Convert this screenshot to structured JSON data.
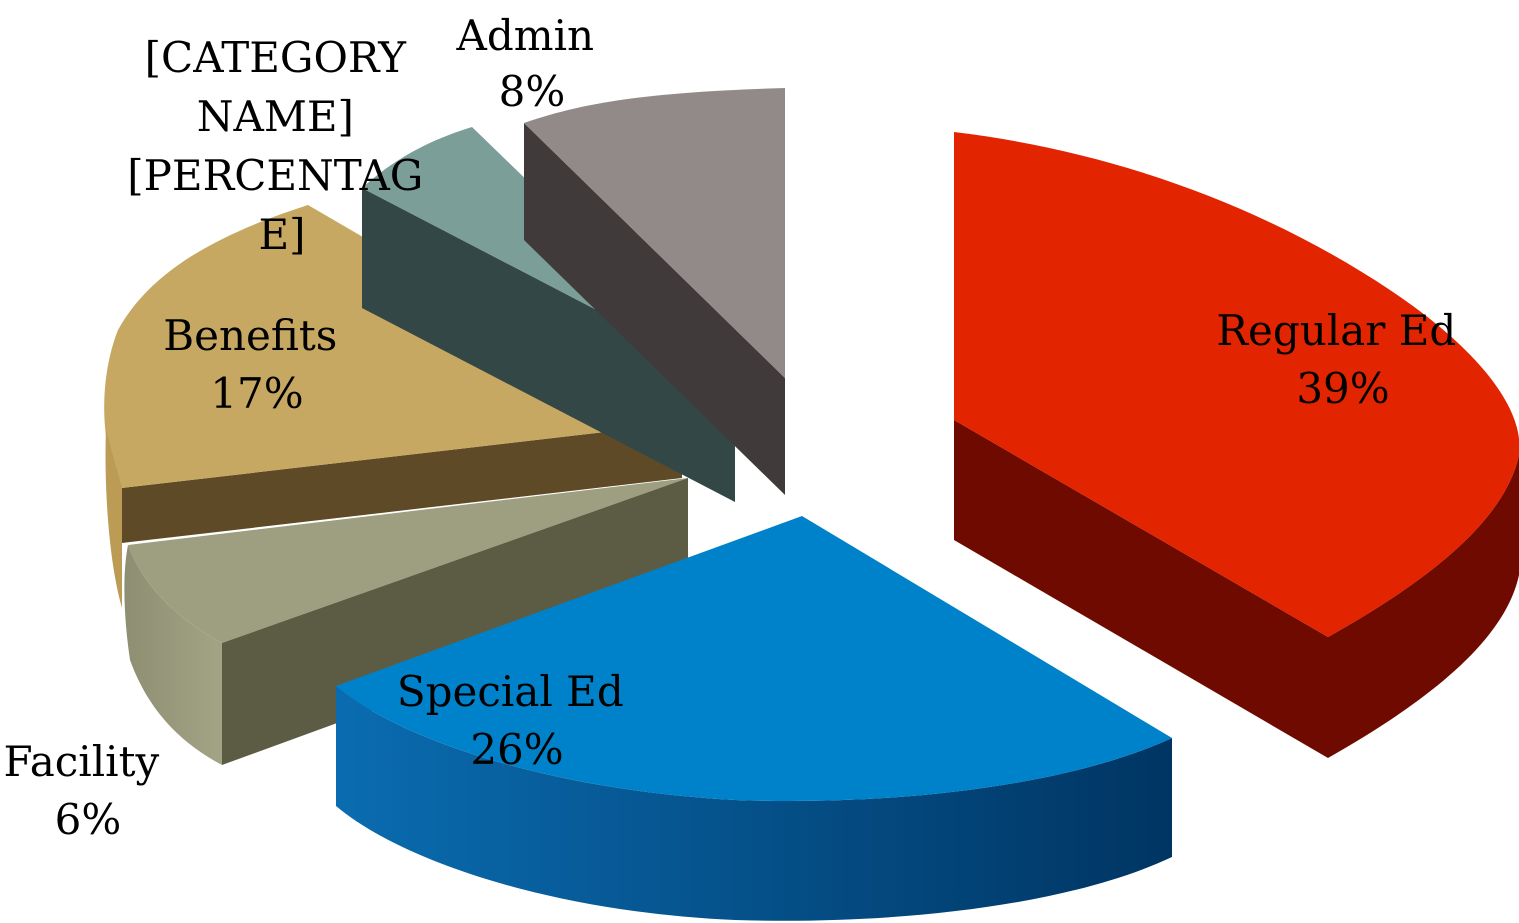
{
  "chart_data": {
    "type": "pie",
    "variant": "3d-exploded",
    "slices": [
      {
        "name": "Regular Ed",
        "value": 39,
        "label_line1": "Regular Ed",
        "label_line2": "39%",
        "color": "#E32400",
        "side_color": "#6E0A00"
      },
      {
        "name": "Special Ed",
        "value": 26,
        "label_line1": "Special Ed",
        "label_line2": "26%",
        "color": "#0082CA",
        "side_color": "#004B82"
      },
      {
        "name": "Facility",
        "value": 6,
        "label_line1": "Facility",
        "label_line2": "6%",
        "color": "#9E9E80",
        "side_color": "#5C5C45"
      },
      {
        "name": "Benefits",
        "value": 17,
        "label_line1": "Benefits",
        "label_line2": "17%",
        "color": "#C7A862",
        "side_color": "#5E4A26"
      },
      {
        "name": "",
        "value": 4,
        "label_lines": [
          "[CATEGORY",
          "NAME]",
          "[PERCENTAG",
          "E]"
        ],
        "color": "#7C9E98",
        "side_color": "#334746"
      },
      {
        "name": "Admin",
        "value": 8,
        "label_line1": "Admin",
        "label_line2": "8%",
        "color": "#928A88",
        "side_color": "#403A3A"
      }
    ],
    "legend": "none"
  }
}
